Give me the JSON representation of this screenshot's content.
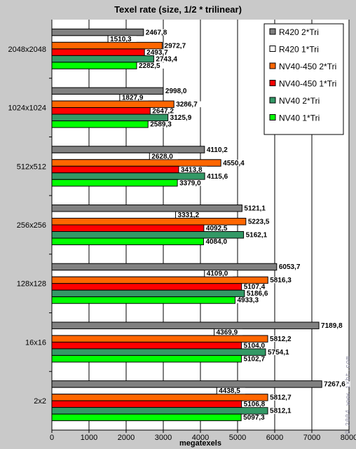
{
  "chart_data": {
    "type": "bar",
    "orientation": "horizontal",
    "title": "Texel rate (size, 1/2 * trilinear)",
    "xlabel": "megatexels",
    "ylabel": "",
    "xlim": [
      0,
      8000
    ],
    "xticks": [
      "0",
      "1000",
      "2000",
      "3000",
      "4000",
      "5000",
      "6000",
      "7000",
      "8000"
    ],
    "grid": "vertical",
    "legend_position": "top-right",
    "categories": [
      "2048x2048",
      "1024x1024",
      "512x512",
      "256x256",
      "128x128",
      "16x16",
      "2x2"
    ],
    "series": [
      {
        "name": "R420 2*Tri",
        "color": "#808080",
        "values": [
          2467.8,
          2998.0,
          4110.2,
          5121.1,
          6053.7,
          7189.8,
          7267.6
        ],
        "labels": [
          "2467,8",
          "2998,0",
          "4110,2",
          "5121,1",
          "6053,7",
          "7189,8",
          "7267,6"
        ]
      },
      {
        "name": "R420 1*Tri",
        "color": "#ffffff",
        "values": [
          1510.3,
          1827.9,
          2628.0,
          3331.2,
          4109.0,
          4369.9,
          4438.5
        ],
        "labels": [
          "1510,3",
          "1827,9",
          "2628,0",
          "3331,2",
          "4109,0",
          "4369,9",
          "4438,5"
        ]
      },
      {
        "name": "NV40-450 2*Tri",
        "color": "#ff6600",
        "values": [
          2972.7,
          3286.7,
          4550.4,
          5223.5,
          5816.3,
          5812.2,
          5812.7
        ],
        "labels": [
          "2972,7",
          "3286,7",
          "4550,4",
          "5223,5",
          "5816,3",
          "5812,2",
          "5812,7"
        ]
      },
      {
        "name": "NV40-450 1*Tri",
        "color": "#ff0000",
        "values": [
          2493.7,
          2647.2,
          3413.8,
          4092.5,
          5107.4,
          5104.0,
          5106.8
        ],
        "labels": [
          "2493,7",
          "2647,2",
          "3413,8",
          "4092,5",
          "5107,4",
          "5104,0",
          "5106,8"
        ]
      },
      {
        "name": "NV40 2*Tri",
        "color": "#339966",
        "values": [
          2743.4,
          3125.9,
          4115.6,
          5162.1,
          5186.6,
          5754.1,
          5812.1
        ],
        "labels": [
          "2743,4",
          "3125,9",
          "4115,6",
          "5162,1",
          "5186,6",
          "5754,1",
          "5812,1"
        ]
      },
      {
        "name": "NV40 1*Tri",
        "color": "#00ff00",
        "values": [
          2282.5,
          2589.3,
          3379.0,
          4084.0,
          4933.3,
          5102.7,
          5097.3
        ],
        "labels": [
          "2282,5",
          "2589,3",
          "3379,0",
          "4084,0",
          "4933,3",
          "5102,7",
          "5097,3"
        ]
      }
    ]
  },
  "watermark": "© 2004 www.ixbt.com"
}
